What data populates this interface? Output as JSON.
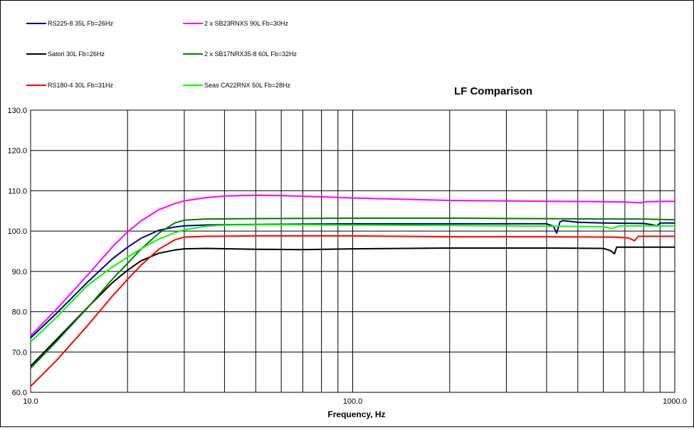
{
  "chart_data": {
    "type": "line",
    "title": "LF Comparison",
    "xlabel": "Frequency, Hz",
    "ylabel": "",
    "xscale": "log",
    "xlim": [
      10,
      1000
    ],
    "ylim": [
      60,
      130
    ],
    "yticks": [
      "60.0",
      "70.0",
      "80.0",
      "90.0",
      "100.0",
      "110.0",
      "120.0",
      "130.0"
    ],
    "xticks": [
      "10.0",
      "100.0",
      "1000.0"
    ],
    "grid": true,
    "legend_placement": "top",
    "colors": {
      "rs225": "#00007f",
      "sb23": "#ff00ff",
      "satori": "#000000",
      "sb17": "#007f00",
      "rs180": "#ff0000",
      "seas": "#00ff00",
      "grid": "#000000"
    },
    "series": [
      {
        "name": "RS225-8 35L Fb=26Hz",
        "color": "rs225",
        "points": [
          [
            10,
            73.5
          ],
          [
            12,
            79.5
          ],
          [
            15,
            87.3
          ],
          [
            18,
            93.2
          ],
          [
            20,
            96.0
          ],
          [
            22,
            98.2
          ],
          [
            25,
            100.2
          ],
          [
            28,
            101.0
          ],
          [
            30,
            101.3
          ],
          [
            35,
            101.5
          ],
          [
            40,
            101.6
          ],
          [
            60,
            101.7
          ],
          [
            100,
            101.8
          ],
          [
            200,
            101.8
          ],
          [
            400,
            101.8
          ],
          [
            420,
            101.2
          ],
          [
            430,
            99.5
          ],
          [
            440,
            102.3
          ],
          [
            450,
            102.6
          ],
          [
            500,
            102.2
          ],
          [
            600,
            102.0
          ],
          [
            800,
            101.9
          ],
          [
            850,
            101.6
          ],
          [
            880,
            101.3
          ],
          [
            900,
            102.0
          ],
          [
            1000,
            102.0
          ]
        ]
      },
      {
        "name": "2 x SB23RNXS 90L Fb=30Hz",
        "color": "sb23",
        "points": [
          [
            10,
            74.0
          ],
          [
            12,
            80.5
          ],
          [
            15,
            89.0
          ],
          [
            18,
            96.2
          ],
          [
            20,
            99.8
          ],
          [
            22,
            102.5
          ],
          [
            25,
            105.3
          ],
          [
            28,
            106.8
          ],
          [
            30,
            107.5
          ],
          [
            35,
            108.3
          ],
          [
            40,
            108.7
          ],
          [
            50,
            108.9
          ],
          [
            60,
            108.8
          ],
          [
            80,
            108.5
          ],
          [
            100,
            108.2
          ],
          [
            200,
            107.6
          ],
          [
            400,
            107.4
          ],
          [
            600,
            107.3
          ],
          [
            700,
            107.2
          ],
          [
            780,
            107.0
          ],
          [
            820,
            107.3
          ],
          [
            1000,
            107.4
          ]
        ]
      },
      {
        "name": "Satori 30L Fb=26Hz",
        "color": "satori",
        "points": [
          [
            10,
            66.5
          ],
          [
            12,
            73.0
          ],
          [
            15,
            81.0
          ],
          [
            18,
            87.3
          ],
          [
            20,
            90.3
          ],
          [
            22,
            92.6
          ],
          [
            25,
            94.5
          ],
          [
            28,
            95.3
          ],
          [
            30,
            95.6
          ],
          [
            35,
            95.7
          ],
          [
            50,
            95.5
          ],
          [
            70,
            95.4
          ],
          [
            100,
            95.6
          ],
          [
            200,
            95.8
          ],
          [
            400,
            95.8
          ],
          [
            600,
            95.7
          ],
          [
            630,
            95.2
          ],
          [
            650,
            94.4
          ],
          [
            660,
            96.0
          ],
          [
            700,
            96.0
          ],
          [
            1000,
            96.0
          ]
        ]
      },
      {
        "name": "2 x SB17NRX35-8 60L Fb=32Hz",
        "color": "sb17",
        "points": [
          [
            10,
            66.0
          ],
          [
            12,
            72.5
          ],
          [
            15,
            80.9
          ],
          [
            18,
            88.2
          ],
          [
            20,
            92.0
          ],
          [
            22,
            95.5
          ],
          [
            25,
            99.5
          ],
          [
            28,
            102.0
          ],
          [
            30,
            102.7
          ],
          [
            35,
            103.0
          ],
          [
            50,
            103.1
          ],
          [
            100,
            103.2
          ],
          [
            200,
            103.2
          ],
          [
            400,
            103.1
          ],
          [
            600,
            103.0
          ],
          [
            800,
            103.0
          ],
          [
            1000,
            102.8
          ]
        ]
      },
      {
        "name": "RS180-4 30L Fb=31Hz",
        "color": "rs180",
        "points": [
          [
            10,
            61.5
          ],
          [
            12,
            67.8
          ],
          [
            15,
            76.5
          ],
          [
            18,
            84.0
          ],
          [
            20,
            88.0
          ],
          [
            22,
            91.5
          ],
          [
            25,
            95.5
          ],
          [
            28,
            97.8
          ],
          [
            30,
            98.5
          ],
          [
            35,
            98.7
          ],
          [
            50,
            98.8
          ],
          [
            100,
            98.8
          ],
          [
            200,
            98.6
          ],
          [
            400,
            98.6
          ],
          [
            650,
            98.5
          ],
          [
            720,
            98.3
          ],
          [
            750,
            97.6
          ],
          [
            770,
            98.7
          ],
          [
            800,
            98.7
          ],
          [
            1000,
            98.7
          ]
        ]
      },
      {
        "name": "Seas CA22RNX 50L Fb=28Hz",
        "color": "seas",
        "points": [
          [
            10,
            72.5
          ],
          [
            12,
            78.5
          ],
          [
            15,
            86.5
          ],
          [
            18,
            91.2
          ],
          [
            20,
            93.5
          ],
          [
            22,
            95.6
          ],
          [
            25,
            98.0
          ],
          [
            28,
            99.6
          ],
          [
            30,
            100.3
          ],
          [
            35,
            101.2
          ],
          [
            40,
            101.5
          ],
          [
            60,
            101.6
          ],
          [
            100,
            101.5
          ],
          [
            200,
            101.4
          ],
          [
            400,
            101.2
          ],
          [
            600,
            101.1
          ],
          [
            640,
            100.6
          ],
          [
            670,
            101.3
          ],
          [
            1000,
            101.3
          ]
        ]
      }
    ]
  }
}
